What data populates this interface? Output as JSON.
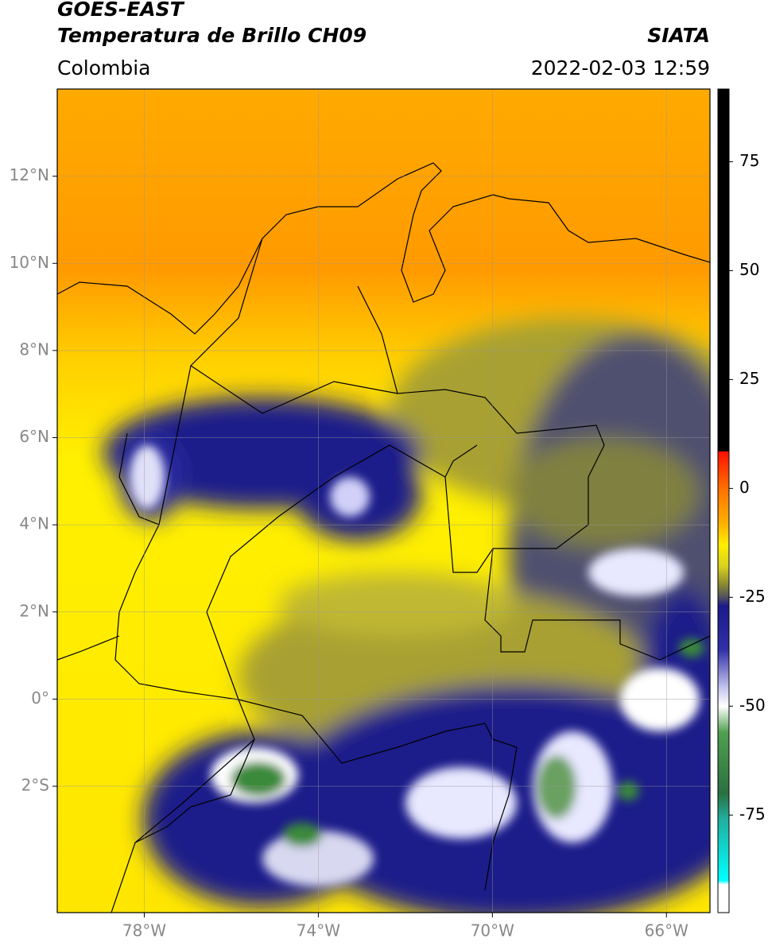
{
  "header": {
    "title": "GOES-EAST",
    "subtitle": "Temperatura de Brillo CH09",
    "region": "Colombia",
    "source": "SIATA",
    "datetime": "2022-02-03 12:59"
  },
  "map": {
    "xlim": [
      -80,
      -65
    ],
    "ylim": [
      -4.9,
      14
    ],
    "grid": true,
    "xticks": [
      {
        "value": -78,
        "label": "78°W"
      },
      {
        "value": -74,
        "label": "74°W"
      },
      {
        "value": -70,
        "label": "70°W"
      },
      {
        "value": -66,
        "label": "66°W"
      }
    ],
    "yticks": [
      {
        "value": 12,
        "label": "12°N"
      },
      {
        "value": 10,
        "label": "10°N"
      },
      {
        "value": 8,
        "label": "8°N"
      },
      {
        "value": 6,
        "label": "6°N"
      },
      {
        "value": 4,
        "label": "4°N"
      },
      {
        "value": 2,
        "label": "2°N"
      },
      {
        "value": 0,
        "label": "0°"
      },
      {
        "value": -2,
        "label": "2°S"
      }
    ]
  },
  "colorbar": {
    "lim": [
      -97.4,
      91.7
    ],
    "ticks": [
      75,
      50,
      25,
      0,
      -25,
      -50,
      -75
    ],
    "stops": [
      {
        "value": 91.7,
        "color": "#000000"
      },
      {
        "value": 8.6,
        "color": "#000000"
      },
      {
        "value": 8.4,
        "color": "#ff1000"
      },
      {
        "value": 0,
        "color": "#ff7000"
      },
      {
        "value": -8,
        "color": "#ffb000"
      },
      {
        "value": -13,
        "color": "#ffee00"
      },
      {
        "value": -18,
        "color": "#d8d020"
      },
      {
        "value": -22,
        "color": "#8a8a30"
      },
      {
        "value": -25,
        "color": "#505060"
      },
      {
        "value": -27,
        "color": "#1a1a8a"
      },
      {
        "value": -37,
        "color": "#3030a8"
      },
      {
        "value": -46,
        "color": "#c8c8f0"
      },
      {
        "value": -50,
        "color": "#ffffff"
      },
      {
        "value": -56,
        "color": "#50a050"
      },
      {
        "value": -70,
        "color": "#2a7040"
      },
      {
        "value": -76,
        "color": "#20b0a0"
      },
      {
        "value": -90,
        "color": "#00ffff"
      },
      {
        "value": -91,
        "color": "#ffffff"
      },
      {
        "value": -97.4,
        "color": "#ffffff"
      }
    ]
  }
}
